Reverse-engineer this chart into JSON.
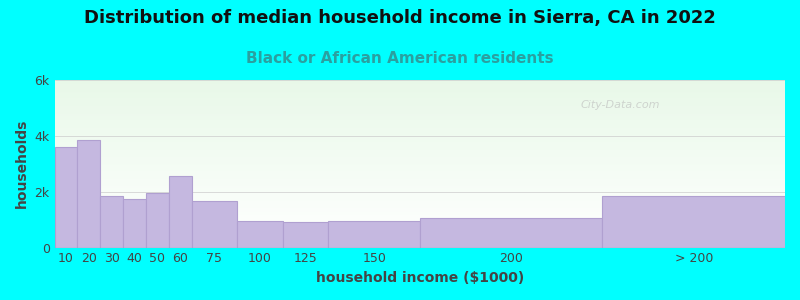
{
  "title": "Distribution of median household income in Sierra, CA in 2022",
  "subtitle": "Black or African American residents",
  "xlabel": "household income ($1000)",
  "ylabel": "households",
  "background_color": "#00FFFF",
  "bar_color": "#c5b8e0",
  "bar_edge_color": "#b0a0d0",
  "categories": [
    "10",
    "20",
    "30",
    "40",
    "50",
    "60",
    "75",
    "100",
    "125",
    "150",
    "200",
    "> 200"
  ],
  "values": [
    3600,
    3850,
    1850,
    1750,
    1950,
    2550,
    1650,
    950,
    900,
    950,
    1050,
    1850
  ],
  "bar_lefts": [
    0,
    1,
    2,
    3,
    4,
    5,
    6,
    8,
    10,
    12,
    16,
    24
  ],
  "bar_widths": [
    1,
    1,
    1,
    1,
    1,
    1,
    2,
    2,
    2,
    4,
    8,
    8
  ],
  "ylim": [
    0,
    6000
  ],
  "yticks": [
    0,
    2000,
    4000,
    6000
  ],
  "ytick_labels": [
    "0",
    "2k",
    "4k",
    "6k"
  ],
  "title_fontsize": 13,
  "subtitle_fontsize": 11,
  "axis_label_fontsize": 10,
  "tick_fontsize": 9,
  "subtitle_color": "#2aa0a0",
  "title_color": "#111111",
  "tick_color": "#444444",
  "watermark_text": "City-Data.com",
  "plot_bg_color_top": "#e8f8e8",
  "plot_bg_color_bottom": "#ffffff"
}
